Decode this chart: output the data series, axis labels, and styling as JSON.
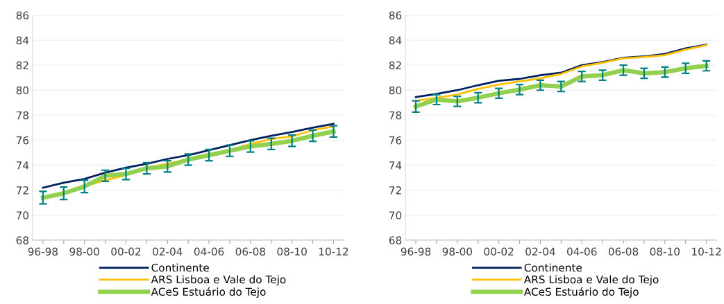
{
  "chart_data": [
    {
      "type": "line",
      "categories": [
        "96-98",
        null,
        "98-00",
        null,
        "00-02",
        null,
        "02-04",
        null,
        "04-06",
        null,
        "06-08",
        null,
        "08-10",
        null,
        "10-12"
      ],
      "ylim": [
        68,
        86
      ],
      "yticks": [
        68,
        70,
        72,
        74,
        76,
        78,
        80,
        82,
        84,
        86
      ],
      "grid": "y",
      "legend": "bottom",
      "marker": "none",
      "series": [
        {
          "name": "Continente",
          "color": "#002060",
          "values": [
            72.2,
            72.6,
            72.9,
            73.4,
            73.8,
            74.1,
            74.5,
            74.8,
            75.2,
            75.6,
            76.0,
            76.35,
            76.65,
            77.0,
            77.3
          ]
        },
        {
          "name": "ARS Lisboa e Vale do Tejo",
          "color": "#ffc000",
          "values": [
            71.4,
            71.8,
            72.3,
            72.8,
            73.2,
            73.8,
            74.1,
            74.5,
            74.9,
            75.2,
            75.7,
            76.1,
            76.3,
            76.8,
            77.1
          ]
        },
        {
          "name": "ACeS Estuário do Tejo",
          "color": "#92d050",
          "values": [
            71.4,
            71.75,
            72.3,
            73.15,
            73.3,
            73.75,
            73.9,
            74.45,
            74.8,
            75.15,
            75.5,
            75.7,
            75.95,
            76.35,
            76.7
          ],
          "errors": [
            0.5,
            0.5,
            0.5,
            0.45,
            0.45,
            0.45,
            0.45,
            0.45,
            0.45,
            0.45,
            0.45,
            0.45,
            0.45,
            0.45,
            0.45
          ]
        }
      ]
    },
    {
      "type": "line",
      "categories": [
        "96-98",
        null,
        "98-00",
        null,
        "00-02",
        null,
        "02-04",
        null,
        "04-06",
        null,
        "06-08",
        null,
        "08-10",
        null,
        "10-12"
      ],
      "ylim": [
        68,
        86
      ],
      "yticks": [
        68,
        70,
        72,
        74,
        76,
        78,
        80,
        82,
        84,
        86
      ],
      "grid": "y",
      "legend": "bottom",
      "marker": "none",
      "series": [
        {
          "name": "Continente",
          "color": "#002060",
          "values": [
            79.45,
            79.7,
            80.0,
            80.4,
            80.75,
            80.9,
            81.2,
            81.4,
            82.0,
            82.25,
            82.6,
            82.7,
            82.9,
            83.35,
            83.65
          ]
        },
        {
          "name": "ARS Lisboa e Vale do Tejo",
          "color": "#ffc000",
          "values": [
            79.15,
            79.4,
            79.65,
            80.1,
            80.45,
            80.7,
            80.95,
            81.3,
            81.9,
            82.2,
            82.55,
            82.65,
            82.8,
            83.25,
            83.6
          ]
        },
        {
          "name": "ACeS Estuário do Tejo",
          "color": "#92d050",
          "values": [
            78.7,
            79.25,
            79.1,
            79.4,
            79.75,
            80.05,
            80.4,
            80.3,
            81.1,
            81.2,
            81.6,
            81.35,
            81.45,
            81.75,
            81.95
          ],
          "errors": [
            0.45,
            0.4,
            0.4,
            0.4,
            0.4,
            0.4,
            0.4,
            0.4,
            0.4,
            0.4,
            0.4,
            0.4,
            0.4,
            0.4,
            0.4
          ]
        }
      ]
    }
  ]
}
